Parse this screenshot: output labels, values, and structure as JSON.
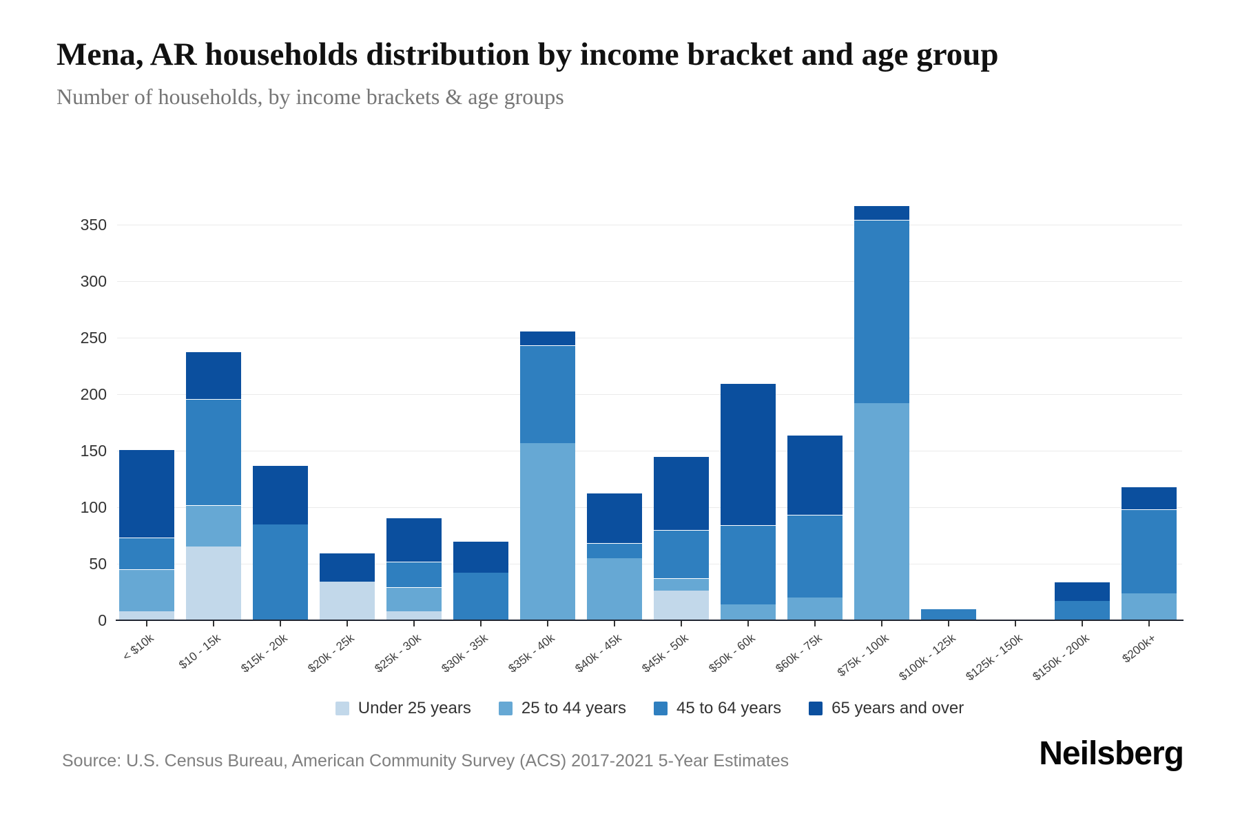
{
  "header": {
    "title": "Mena, AR households distribution by income bracket and age group",
    "subtitle": "Number of households, by income brackets & age groups"
  },
  "footer": {
    "source": "Source: U.S. Census Bureau, American Community Survey (ACS) 2017-2021 5-Year Estimates",
    "brand": "Neilsberg"
  },
  "chart_data": {
    "type": "bar",
    "stacked": true,
    "title": "Mena, AR households distribution by income bracket and age group",
    "subtitle": "Number of households, by income brackets & age groups",
    "xlabel": "",
    "ylabel": "Number of households",
    "ylim": [
      0,
      350
    ],
    "yticks": [
      0,
      50,
      100,
      150,
      200,
      250,
      300,
      350
    ],
    "grid": "horizontal",
    "legend_position": "bottom",
    "categories": [
      "< $10k",
      "$10 - 15k",
      "$15k - 20k",
      "$20k - 25k",
      "$25k - 30k",
      "$30k - 35k",
      "$35k - 40k",
      "$40k - 45k",
      "$45k - 50k",
      "$50k - 60k",
      "$60k - 75k",
      "$75k - 100k",
      "$100k - 125k",
      "$125k - 150k",
      "$150k - 200k",
      "$200k+"
    ],
    "series": [
      {
        "name": "Under 25 years",
        "color": "#c2d8ea",
        "values": [
          8,
          65,
          0,
          34,
          8,
          0,
          0,
          0,
          26,
          0,
          0,
          0,
          0,
          0,
          0,
          0
        ]
      },
      {
        "name": "25 to 44 years",
        "color": "#66a8d4",
        "values": [
          37,
          37,
          0,
          0,
          21,
          0,
          157,
          55,
          11,
          14,
          20,
          192,
          0,
          0,
          0,
          24
        ]
      },
      {
        "name": "45 to 64 years",
        "color": "#2f7fbf",
        "values": [
          28,
          94,
          85,
          0,
          23,
          42,
          86,
          13,
          43,
          70,
          73,
          162,
          10,
          0,
          17,
          74
        ]
      },
      {
        "name": "65 years and over",
        "color": "#0b4f9e",
        "values": [
          78,
          42,
          52,
          26,
          39,
          28,
          13,
          45,
          65,
          126,
          71,
          13,
          0,
          0,
          17,
          20
        ]
      }
    ],
    "totals": [
      151,
      238,
      137,
      60,
      91,
      70,
      256,
      113,
      145,
      210,
      164,
      367,
      10,
      0,
      34,
      118
    ]
  }
}
